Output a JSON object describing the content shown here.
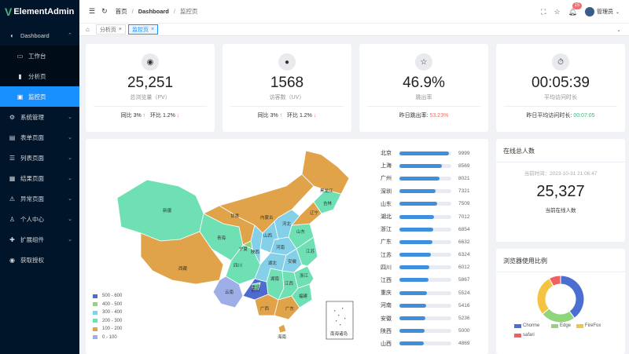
{
  "app": {
    "logo_letter": "V",
    "logo_text": "ElementAdmin"
  },
  "sidebar": {
    "items": [
      {
        "label": "Dashboard",
        "icon": "dashboard-icon",
        "arrow": "⌃"
      },
      {
        "label": "工作台",
        "icon": "monitor-icon"
      },
      {
        "label": "分析页",
        "icon": "bar-chart-icon"
      },
      {
        "label": "监控页",
        "icon": "screen-icon"
      },
      {
        "label": "系统管理",
        "icon": "gear-icon",
        "arrow": "⌄"
      },
      {
        "label": "表单页面",
        "icon": "form-icon",
        "arrow": "⌄"
      },
      {
        "label": "列表页面",
        "icon": "list-icon",
        "arrow": "⌄"
      },
      {
        "label": "结果页面",
        "icon": "result-icon",
        "arrow": "⌄"
      },
      {
        "label": "异常页面",
        "icon": "warning-icon",
        "arrow": "⌄"
      },
      {
        "label": "个人中心",
        "icon": "user-icon",
        "arrow": "⌄"
      },
      {
        "label": "扩展组件",
        "icon": "extension-icon",
        "arrow": "⌄"
      },
      {
        "label": "获取授权",
        "icon": "authorize-icon"
      }
    ]
  },
  "header": {
    "crumb1": "首页",
    "crumb2": "Dashboard",
    "crumb3": "监控页",
    "sep": "/",
    "badge": "15",
    "user": "管理员"
  },
  "tabs": {
    "items": [
      "分析页",
      "监控页"
    ],
    "close": "×",
    "active": "监控页"
  },
  "stats": [
    {
      "value": "25,251",
      "label": "总浏览量（PV）",
      "f1": "同比 3%",
      "f1arrow": "↑",
      "f2": "环比 1.2%",
      "f2arrow": "↓"
    },
    {
      "value": "1568",
      "label": "访客数（UV）",
      "f1": "同比 3%",
      "f1arrow": "↑",
      "f2": "环比 1.2%",
      "f2arrow": "↓"
    },
    {
      "value": "46.9%",
      "label": "跳出率",
      "f1": "昨日跳出率:",
      "f1val": "53.23%"
    },
    {
      "value": "00:05:39",
      "label": "平均访问时长",
      "f1": "昨日平均访问时长:",
      "f1val": "00:07:05"
    }
  ],
  "map": {
    "legend": [
      {
        "label": "500 - 600",
        "color": "#4f6bd0"
      },
      {
        "label": "400 - 500",
        "color": "#8fd67a"
      },
      {
        "label": "300 - 400",
        "color": "#83d0e8"
      },
      {
        "label": "200 - 300",
        "color": "#6fe0b4"
      },
      {
        "label": "100 - 200",
        "color": "#e0a34a"
      },
      {
        "label": "0 - 100",
        "color": "#9eaee6"
      }
    ],
    "labels": [
      "新疆",
      "西藏",
      "青海",
      "甘肃",
      "四川",
      "云南",
      "贵州",
      "广西",
      "广东",
      "湖南",
      "江西",
      "福建",
      "浙江",
      "湖北",
      "安徽",
      "河南",
      "山东",
      "山西",
      "陕西",
      "内蒙古",
      "黑龙江",
      "吉林",
      "辽宁",
      "河北",
      "宁夏",
      "重庆",
      "江苏",
      "海南"
    ],
    "inset": "南海诸岛"
  },
  "ranking": [
    {
      "city": "北京",
      "value": 9999
    },
    {
      "city": "上海",
      "value": 8569
    },
    {
      "city": "广州",
      "value": 8021
    },
    {
      "city": "深圳",
      "value": 7321
    },
    {
      "city": "山东",
      "value": 7509
    },
    {
      "city": "湖北",
      "value": 7012
    },
    {
      "city": "浙江",
      "value": 6854
    },
    {
      "city": "广东",
      "value": 6632
    },
    {
      "city": "江苏",
      "value": 6324
    },
    {
      "city": "四川",
      "value": 6012
    },
    {
      "city": "江西",
      "value": 5867
    },
    {
      "city": "重庆",
      "value": 5524
    },
    {
      "city": "河南",
      "value": 5416
    },
    {
      "city": "安徽",
      "value": 5236
    },
    {
      "city": "陕西",
      "value": 5000
    },
    {
      "city": "山西",
      "value": 4869
    }
  ],
  "online": {
    "title": "在线总人数",
    "time": "当前时间：2023-10-31 21:06:47",
    "count": "25,327",
    "sub": "当前在线人数"
  },
  "browser": {
    "title": "浏览器使用比例",
    "legend": [
      {
        "name": "Chorme",
        "color": "#4a6fd0",
        "share": 40
      },
      {
        "name": "Edge",
        "color": "#8fd67a",
        "share": 24
      },
      {
        "name": "FireFox",
        "color": "#f5c342",
        "share": 28
      },
      {
        "name": "safari",
        "color": "#ef5f63",
        "share": 8
      }
    ]
  }
}
